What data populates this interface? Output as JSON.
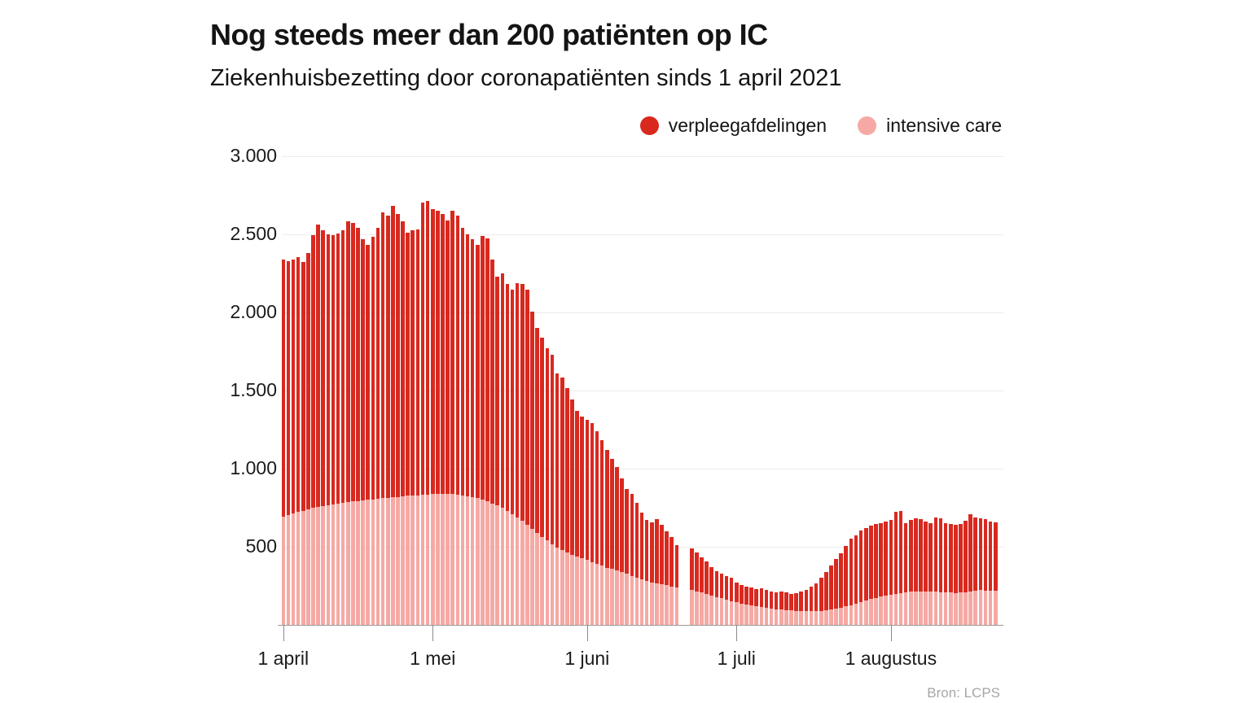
{
  "header": {
    "title": "Nog steeds meer dan 200 patiënten op IC",
    "subtitle": "Ziekenhuisbezetting door coronapatiënten sinds 1 april 2021"
  },
  "source": "Bron: LCPS",
  "colors": {
    "ward_red": "#d9291f",
    "ic_pink": "#f6a9a4",
    "grid": "#ececec",
    "axis": "#9a9a9a",
    "text": "#1a1a1a",
    "muted": "#a6a6a6",
    "background": "#ffffff"
  },
  "chart_data": {
    "type": "bar",
    "stacked": true,
    "title": "Nog steeds meer dan 200 patiënten op IC",
    "subtitle": "Ziekenhuisbezetting door coronapatiënten sinds 1 april 2021",
    "source": "Bron: LCPS",
    "grid": true,
    "legend_position": "top-right",
    "ylim": [
      0,
      3000
    ],
    "yticks": [
      {
        "value": 500,
        "label": "500"
      },
      {
        "value": 1000,
        "label": "1.000"
      },
      {
        "value": 1500,
        "label": "1.500"
      },
      {
        "value": 2000,
        "label": "2.000"
      },
      {
        "value": 2500,
        "label": "2.500"
      },
      {
        "value": 3000,
        "label": "3.000"
      }
    ],
    "xticks": [
      {
        "day": 0,
        "label": "1 april"
      },
      {
        "day": 30,
        "label": "1 mei"
      },
      {
        "day": 61,
        "label": "1 juni"
      },
      {
        "day": 91,
        "label": "1 juli"
      },
      {
        "day": 122,
        "label": "1 augustus"
      }
    ],
    "legend": [
      {
        "label": "verpleegafdelingen",
        "color": "#d9291f"
      },
      {
        "label": "intensive care",
        "color": "#f6a9a4"
      }
    ],
    "series": [
      {
        "name": "intensive care",
        "color": "#f6a9a4",
        "values": [
          695,
          705,
          715,
          722,
          730,
          740,
          748,
          755,
          760,
          765,
          770,
          775,
          780,
          785,
          790,
          793,
          796,
          800,
          803,
          806,
          810,
          813,
          816,
          820,
          823,
          826,
          828,
          830,
          833,
          835,
          837,
          838,
          840,
          839,
          837,
          834,
          830,
          825,
          818,
          810,
          800,
          790,
          778,
          764,
          748,
          730,
          710,
          688,
          665,
          640,
          615,
          590,
          565,
          540,
          515,
          495,
          478,
          462,
          448,
          436,
          425,
          415,
          402,
          390,
          378,
          367,
          357,
          348,
          338,
          327,
          315,
          303,
          291,
          280,
          272,
          265,
          259,
          253,
          246,
          238,
          null,
          null,
          222,
          214,
          206,
          197,
          188,
          179,
          170,
          161,
          152,
          144,
          137,
          130,
          124,
          118,
          113,
          108,
          104,
          100,
          97,
          94,
          92,
          90,
          89,
          88,
          88,
          89,
          91,
          94,
          98,
          103,
          110,
          118,
          127,
          137,
          147,
          157,
          166,
          174,
          181,
          188,
          194,
          199,
          204,
          208,
          211,
          214,
          216,
          215,
          213,
          211,
          209,
          207,
          206,
          205,
          206,
          210,
          215,
          220,
          223,
          221,
          219,
          218
        ]
      },
      {
        "name": "verpleegafdelingen",
        "color": "#d9291f",
        "values": [
          1645,
          1625,
          1625,
          1633,
          1595,
          1640,
          1747,
          1805,
          1765,
          1735,
          1725,
          1730,
          1745,
          1800,
          1785,
          1747,
          1674,
          1630,
          1682,
          1734,
          1830,
          1807,
          1864,
          1810,
          1762,
          1684,
          1697,
          1700,
          1872,
          1880,
          1823,
          1812,
          1790,
          1751,
          1813,
          1786,
          1710,
          1675,
          1652,
          1620,
          1690,
          1685,
          1562,
          1466,
          1502,
          1450,
          1435,
          1497,
          1515,
          1505,
          1390,
          1310,
          1275,
          1230,
          1215,
          1115,
          1107,
          1053,
          997,
          934,
          910,
          900,
          888,
          850,
          802,
          753,
          703,
          662,
          602,
          543,
          523,
          478,
          428,
          392,
          384,
          412,
          381,
          346,
          317,
          272,
          null,
          null,
          268,
          251,
          224,
          208,
          184,
          166,
          160,
          154,
          148,
          126,
          118,
          115,
          114,
          112,
          122,
          114,
          111,
          110,
          116,
          113,
          108,
          115,
          123,
          137,
          157,
          176,
          209,
          246,
          282,
          317,
          350,
          387,
          423,
          438,
          459,
          461,
          469,
          472,
          472,
          476,
          477,
          525,
          525,
          445,
          460,
          467,
          460,
          449,
          440,
          477,
          472,
          446,
          440,
          435,
          440,
          457,
          491,
          468,
          458,
          455,
          445,
          440
        ]
      }
    ]
  }
}
